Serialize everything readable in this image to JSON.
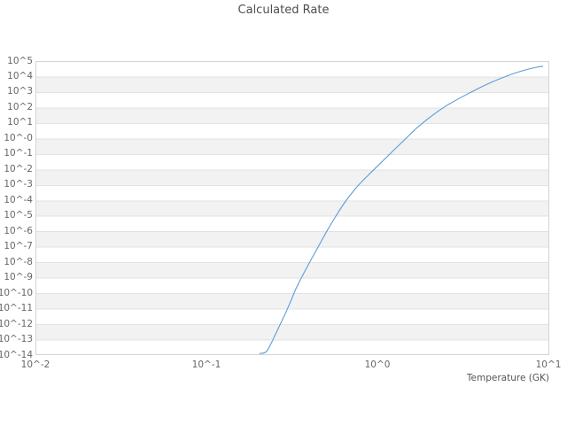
{
  "chart_data": {
    "type": "line",
    "title": "Calculated Rate",
    "xlabel": "Temperature (GK)",
    "ylabel": "",
    "x_scale": "log10",
    "y_scale": "log10",
    "xlim_log10": [
      -2,
      1
    ],
    "ylim_log10": [
      -14,
      5
    ],
    "grid": "horizontal-only",
    "legend": "none",
    "background": "alternating horizontal decade stripes (white / light gray)",
    "x_ticks": [
      {
        "log10": -2,
        "label": "10^-2"
      },
      {
        "log10": -1,
        "label": "10^-1"
      },
      {
        "log10": 0,
        "label": "10^0"
      },
      {
        "log10": 1,
        "label": "10^1"
      }
    ],
    "y_ticks": [
      {
        "log10": 5,
        "label": "10^5"
      },
      {
        "log10": 4,
        "label": "10^4"
      },
      {
        "log10": 3,
        "label": "10^3"
      },
      {
        "log10": 2,
        "label": "10^2"
      },
      {
        "log10": 1,
        "label": "10^1"
      },
      {
        "log10": 0,
        "label": "10^-0"
      },
      {
        "log10": -1,
        "label": "10^-1"
      },
      {
        "log10": -2,
        "label": "10^-2"
      },
      {
        "log10": -3,
        "label": "10^-3"
      },
      {
        "log10": -4,
        "label": "10^-4"
      },
      {
        "log10": -5,
        "label": "10^-5"
      },
      {
        "log10": -6,
        "label": "10^-6"
      },
      {
        "log10": -7,
        "label": "10^-7"
      },
      {
        "log10": -8,
        "label": "10^-8"
      },
      {
        "log10": -9,
        "label": "10^-9"
      },
      {
        "log10": -10,
        "label": "10^-10"
      },
      {
        "log10": -11,
        "label": "10^-11"
      },
      {
        "log10": -12,
        "label": "10^-12"
      },
      {
        "log10": -13,
        "label": "10^-13"
      },
      {
        "log10": -14,
        "label": "10^-14"
      }
    ],
    "series": [
      {
        "name": "calculated-rate",
        "color": "#5b9cd8",
        "points_log10": [
          [
            -0.69,
            -13.9
          ],
          [
            -0.662,
            -13.86
          ],
          [
            -0.645,
            -13.72
          ],
          [
            -0.624,
            -13.3
          ],
          [
            -0.6,
            -12.75
          ],
          [
            -0.57,
            -12.05
          ],
          [
            -0.54,
            -11.35
          ],
          [
            -0.51,
            -10.6
          ],
          [
            -0.48,
            -9.8
          ],
          [
            -0.444,
            -9.0
          ],
          [
            -0.396,
            -8.0
          ],
          [
            -0.346,
            -7.0
          ],
          [
            -0.296,
            -6.0
          ],
          [
            -0.242,
            -5.0
          ],
          [
            -0.182,
            -4.0
          ],
          [
            -0.109,
            -3.0
          ],
          [
            -0.019,
            -2.0
          ],
          [
            0.073,
            -1.0
          ],
          [
            0.167,
            0.0
          ],
          [
            0.243,
            0.8
          ],
          [
            0.38,
            1.95
          ],
          [
            0.523,
            2.85
          ],
          [
            0.66,
            3.6
          ],
          [
            0.798,
            4.2
          ],
          [
            0.88,
            4.47
          ],
          [
            0.93,
            4.6
          ],
          [
            0.969,
            4.67
          ]
        ]
      }
    ]
  },
  "colors": {
    "line": "#5b9cd8",
    "gridline": "#e2e2e2",
    "plot_border": "#d4d4d4",
    "stripe": "#f2f2f2",
    "tick_text": "#666666",
    "title_text": "#4d4d4d",
    "axis_title_text": "#555555"
  }
}
